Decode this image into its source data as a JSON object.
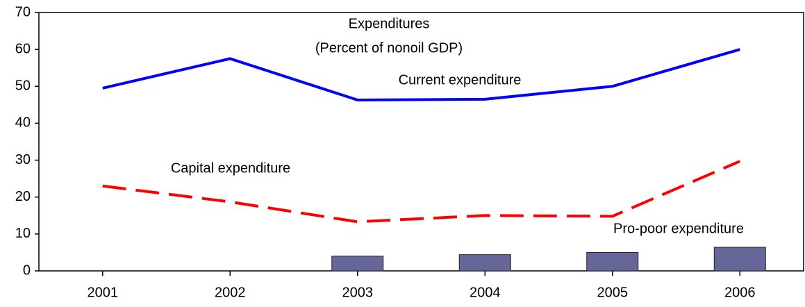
{
  "chart_data": {
    "type": "line",
    "title": "Expenditures",
    "subtitle": "(Percent of nonoil GDP)",
    "categories": [
      "2001",
      "2002",
      "2003",
      "2004",
      "2005",
      "2006"
    ],
    "series": [
      {
        "name": "Current expenditure",
        "color": "#0000ff",
        "values": [
          49.5,
          57.5,
          46.3,
          46.5,
          50,
          60
        ]
      },
      {
        "name": "Capital expenditure",
        "color": "#ff0000",
        "dashed": true,
        "values": [
          23,
          18.7,
          13.3,
          15,
          14.8,
          29.7
        ]
      },
      {
        "name": "Pro-poor expenditure",
        "color": "#666699",
        "type": "bar",
        "values": [
          null,
          null,
          4,
          4.4,
          5,
          6.4
        ]
      }
    ],
    "ylim": [
      0,
      70
    ],
    "yticks": [
      0,
      10,
      20,
      30,
      40,
      50,
      60,
      70
    ],
    "grid": false
  }
}
